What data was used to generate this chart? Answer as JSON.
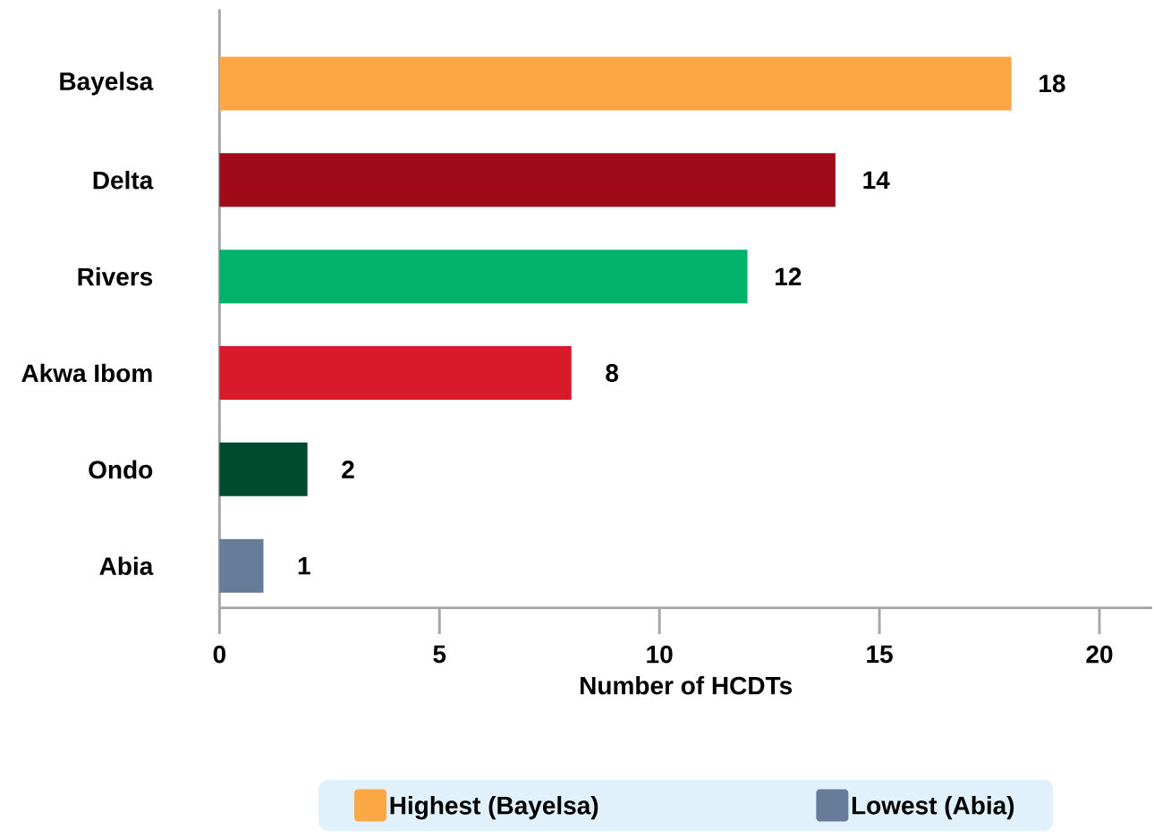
{
  "chart_data": {
    "type": "bar",
    "orientation": "horizontal",
    "xlabel": "Number of HCDTs",
    "categories": [
      "Bayelsa",
      "Delta",
      "Rivers",
      "Akwa Ibom",
      "Ondo",
      "Abia"
    ],
    "series": [
      {
        "name": "Highest (Bayelsa)",
        "color": "#fba744",
        "values": [
          18,
          null,
          null,
          null,
          null,
          null
        ]
      },
      {
        "colors": [
          null,
          "#a00a1a",
          "#00b26a",
          "#d91a2a",
          "#004b2f",
          null
        ],
        "values": [
          null,
          14,
          12,
          8,
          2,
          null
        ]
      },
      {
        "name": "Lowest (Abia)",
        "color": "#667c99",
        "values": [
          null,
          null,
          null,
          null,
          null,
          1
        ]
      }
    ],
    "xlim": [
      0,
      21.2
    ],
    "xticks": [
      0,
      5,
      10,
      15,
      20
    ],
    "data_labels": true,
    "legend": "bottom",
    "grid": false
  }
}
